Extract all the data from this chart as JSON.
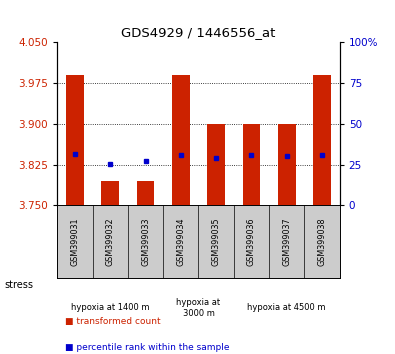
{
  "title": "GDS4929 / 1446556_at",
  "samples": [
    "GSM399031",
    "GSM399032",
    "GSM399033",
    "GSM399034",
    "GSM399035",
    "GSM399036",
    "GSM399037",
    "GSM399038"
  ],
  "red_values": [
    3.99,
    3.795,
    3.795,
    3.99,
    3.9,
    3.9,
    3.9,
    3.99
  ],
  "blue_values": [
    3.845,
    3.826,
    3.832,
    3.843,
    3.838,
    3.843,
    3.84,
    3.843
  ],
  "ylim_left": [
    3.75,
    4.05
  ],
  "yticks_left": [
    3.75,
    3.825,
    3.9,
    3.975,
    4.05
  ],
  "yticks_right": [
    0,
    25,
    50,
    75,
    100
  ],
  "bar_color": "#cc2200",
  "dot_color": "#0000cc",
  "groups": [
    {
      "label": "hypoxia at 1400 m",
      "start": 0,
      "end": 3,
      "color": "#bbffbb"
    },
    {
      "label": "hypoxia at\n3000 m",
      "start": 3,
      "end": 5,
      "color": "#99ee99"
    },
    {
      "label": "hypoxia at 4500 m",
      "start": 5,
      "end": 8,
      "color": "#44dd44"
    }
  ],
  "stress_label": "stress",
  "legend_red": "transformed count",
  "legend_blue": "percentile rank within the sample",
  "bg_color": "#ffffff",
  "tick_color_left": "#cc2200",
  "tick_color_right": "#0000cc",
  "sample_bg": "#cccccc"
}
